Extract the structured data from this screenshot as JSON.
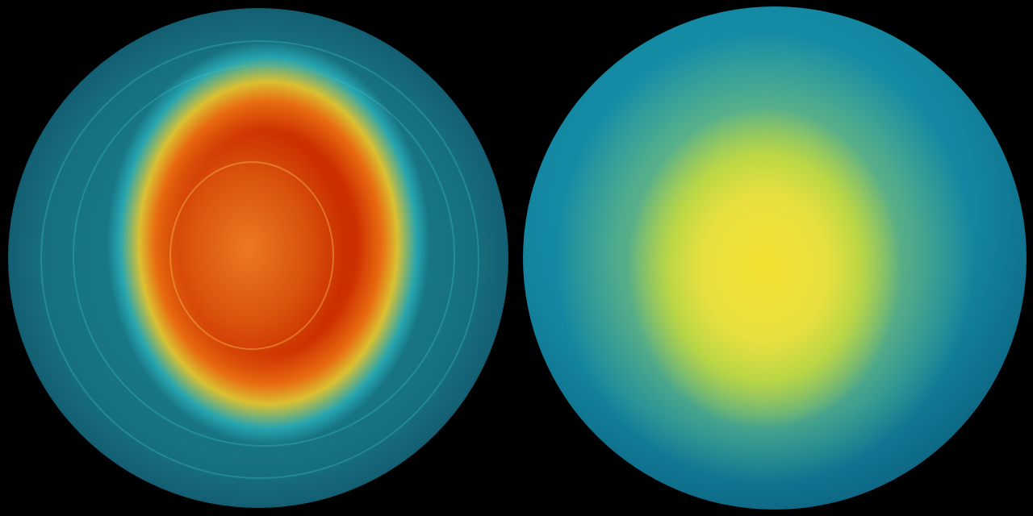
{
  "scene": {
    "left_globe": {
      "colors": {
        "core": "#c02800",
        "ring": "#f0c828",
        "ocean": "#17707f"
      }
    },
    "right_globe": {
      "colors": {
        "core": "#f4e030",
        "ocean": "#1386a0"
      }
    },
    "background": "#000000"
  }
}
